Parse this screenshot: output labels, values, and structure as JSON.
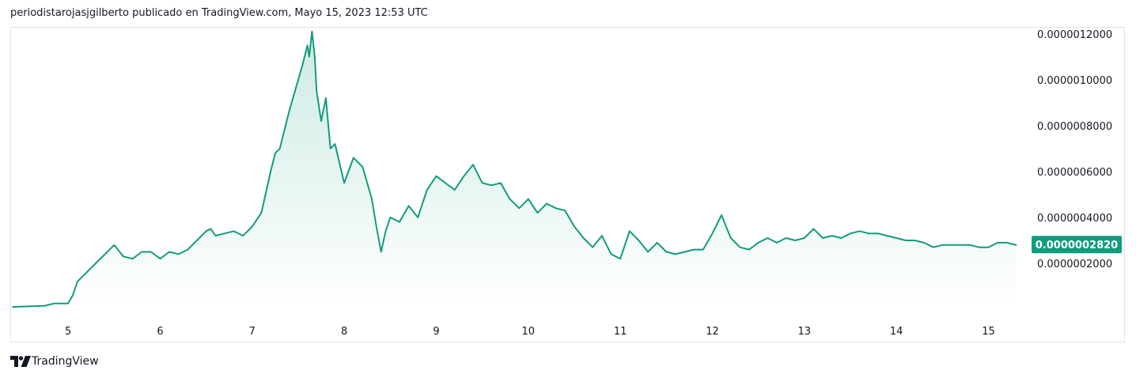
{
  "header": {
    "title": "periodistarojasjgilberto publicado en TradingView.com, Mayo 15, 2023 12:53 UTC"
  },
  "footer": {
    "brand": "TradingView"
  },
  "colors": {
    "line": "#149b7f",
    "fill_top": "#cdebe3",
    "fill_bottom": "#ffffff",
    "price_label_bg": "#149b7f",
    "text": "#131722",
    "border": "#e0e3eb"
  },
  "icons": {
    "brand_logo": "tradingview-logo-icon"
  },
  "chart_data": {
    "type": "area",
    "title": "",
    "xlabel": "",
    "ylabel": "",
    "x_tick_labels": [
      "5",
      "6",
      "7",
      "8",
      "9",
      "10",
      "11",
      "12",
      "13",
      "14",
      "15"
    ],
    "x_ticks": [
      5,
      6,
      7,
      8,
      9,
      10,
      11,
      12,
      13,
      14,
      15
    ],
    "y_tick_labels": [
      "0.0000012000",
      "0.0000010000",
      "0.0000008000",
      "0.0000006000",
      "0.0000004000",
      "0.0000002000"
    ],
    "y_ticks": [
      1.2e-06,
      1e-06,
      8e-07,
      6e-07,
      4e-07,
      2e-07
    ],
    "xlim": [
      4.38,
      15.4
    ],
    "ylim": [
      0.0,
      1.22e-06
    ],
    "grid": false,
    "last_value": 2.82e-07,
    "last_value_label": "0.0000002820",
    "series": [
      {
        "x": [
          4.4,
          4.55,
          4.75,
          4.85,
          5.0,
          5.05,
          5.1,
          5.2,
          5.3,
          5.4,
          5.5,
          5.6,
          5.7,
          5.8,
          5.9,
          6.0,
          6.1,
          6.2,
          6.3,
          6.4,
          6.5,
          6.55,
          6.6,
          6.7,
          6.8,
          6.9,
          7.0,
          7.1,
          7.2,
          7.25,
          7.3,
          7.35,
          7.4,
          7.45,
          7.5,
          7.55,
          7.6,
          7.62,
          7.65,
          7.68,
          7.7,
          7.75,
          7.8,
          7.85,
          7.9,
          8.0,
          8.1,
          8.2,
          8.3,
          8.35,
          8.4,
          8.45,
          8.5,
          8.6,
          8.7,
          8.8,
          8.9,
          9.0,
          9.1,
          9.2,
          9.3,
          9.4,
          9.5,
          9.6,
          9.7,
          9.8,
          9.9,
          10.0,
          10.1,
          10.2,
          10.3,
          10.4,
          10.5,
          10.6,
          10.7,
          10.8,
          10.9,
          11.0,
          11.1,
          11.2,
          11.3,
          11.4,
          11.5,
          11.6,
          11.7,
          11.8,
          11.9,
          12.0,
          12.1,
          12.2,
          12.3,
          12.4,
          12.5,
          12.6,
          12.7,
          12.8,
          12.9,
          13.0,
          13.1,
          13.2,
          13.3,
          13.4,
          13.5,
          13.6,
          13.7,
          13.8,
          13.9,
          14.0,
          14.1,
          14.2,
          14.3,
          14.4,
          14.5,
          14.6,
          14.7,
          14.8,
          14.9,
          15.0,
          15.1,
          15.2,
          15.3
        ],
        "values": [
          1e-08,
          1.2e-08,
          1.5e-08,
          2.5e-08,
          2.5e-08,
          6e-08,
          1.2e-07,
          1.6e-07,
          2e-07,
          2.4e-07,
          2.8e-07,
          2.3e-07,
          2.2e-07,
          2.5e-07,
          2.5e-07,
          2.2e-07,
          2.5e-07,
          2.4e-07,
          2.6e-07,
          3e-07,
          3.4e-07,
          3.5e-07,
          3.2e-07,
          3.3e-07,
          3.4e-07,
          3.2e-07,
          3.6e-07,
          4.2e-07,
          6e-07,
          6.8e-07,
          7e-07,
          7.8e-07,
          8.6e-07,
          9.3e-07,
          1e-06,
          1.07e-06,
          1.15e-06,
          1.1e-06,
          1.21e-06,
          1.1e-06,
          9.5e-07,
          8.2e-07,
          9.2e-07,
          7e-07,
          7.2e-07,
          5.5e-07,
          6.6e-07,
          6.2e-07,
          4.8e-07,
          3.6e-07,
          2.5e-07,
          3.4e-07,
          4e-07,
          3.8e-07,
          4.5e-07,
          4e-07,
          5.2e-07,
          5.8e-07,
          5.5e-07,
          5.2e-07,
          5.8e-07,
          6.3e-07,
          5.5e-07,
          5.4e-07,
          5.5e-07,
          4.8e-07,
          4.4e-07,
          4.8e-07,
          4.2e-07,
          4.6e-07,
          4.4e-07,
          4.3e-07,
          3.6e-07,
          3.1e-07,
          2.7e-07,
          3.2e-07,
          2.4e-07,
          2.2e-07,
          3.4e-07,
          3e-07,
          2.5e-07,
          2.9e-07,
          2.5e-07,
          2.4e-07,
          2.5e-07,
          2.6e-07,
          2.6e-07,
          3.3e-07,
          4.1e-07,
          3.1e-07,
          2.7e-07,
          2.6e-07,
          2.9e-07,
          3.1e-07,
          2.9e-07,
          3.1e-07,
          3e-07,
          3.1e-07,
          3.5e-07,
          3.1e-07,
          3.2e-07,
          3.1e-07,
          3.3e-07,
          3.4e-07,
          3.3e-07,
          3.3e-07,
          3.2e-07,
          3.1e-07,
          3e-07,
          3e-07,
          2.9e-07,
          2.7e-07,
          2.8e-07,
          2.8e-07,
          2.8e-07,
          2.8e-07,
          2.7e-07,
          2.7e-07,
          2.9e-07,
          2.9e-07,
          2.8e-07
        ]
      }
    ]
  }
}
